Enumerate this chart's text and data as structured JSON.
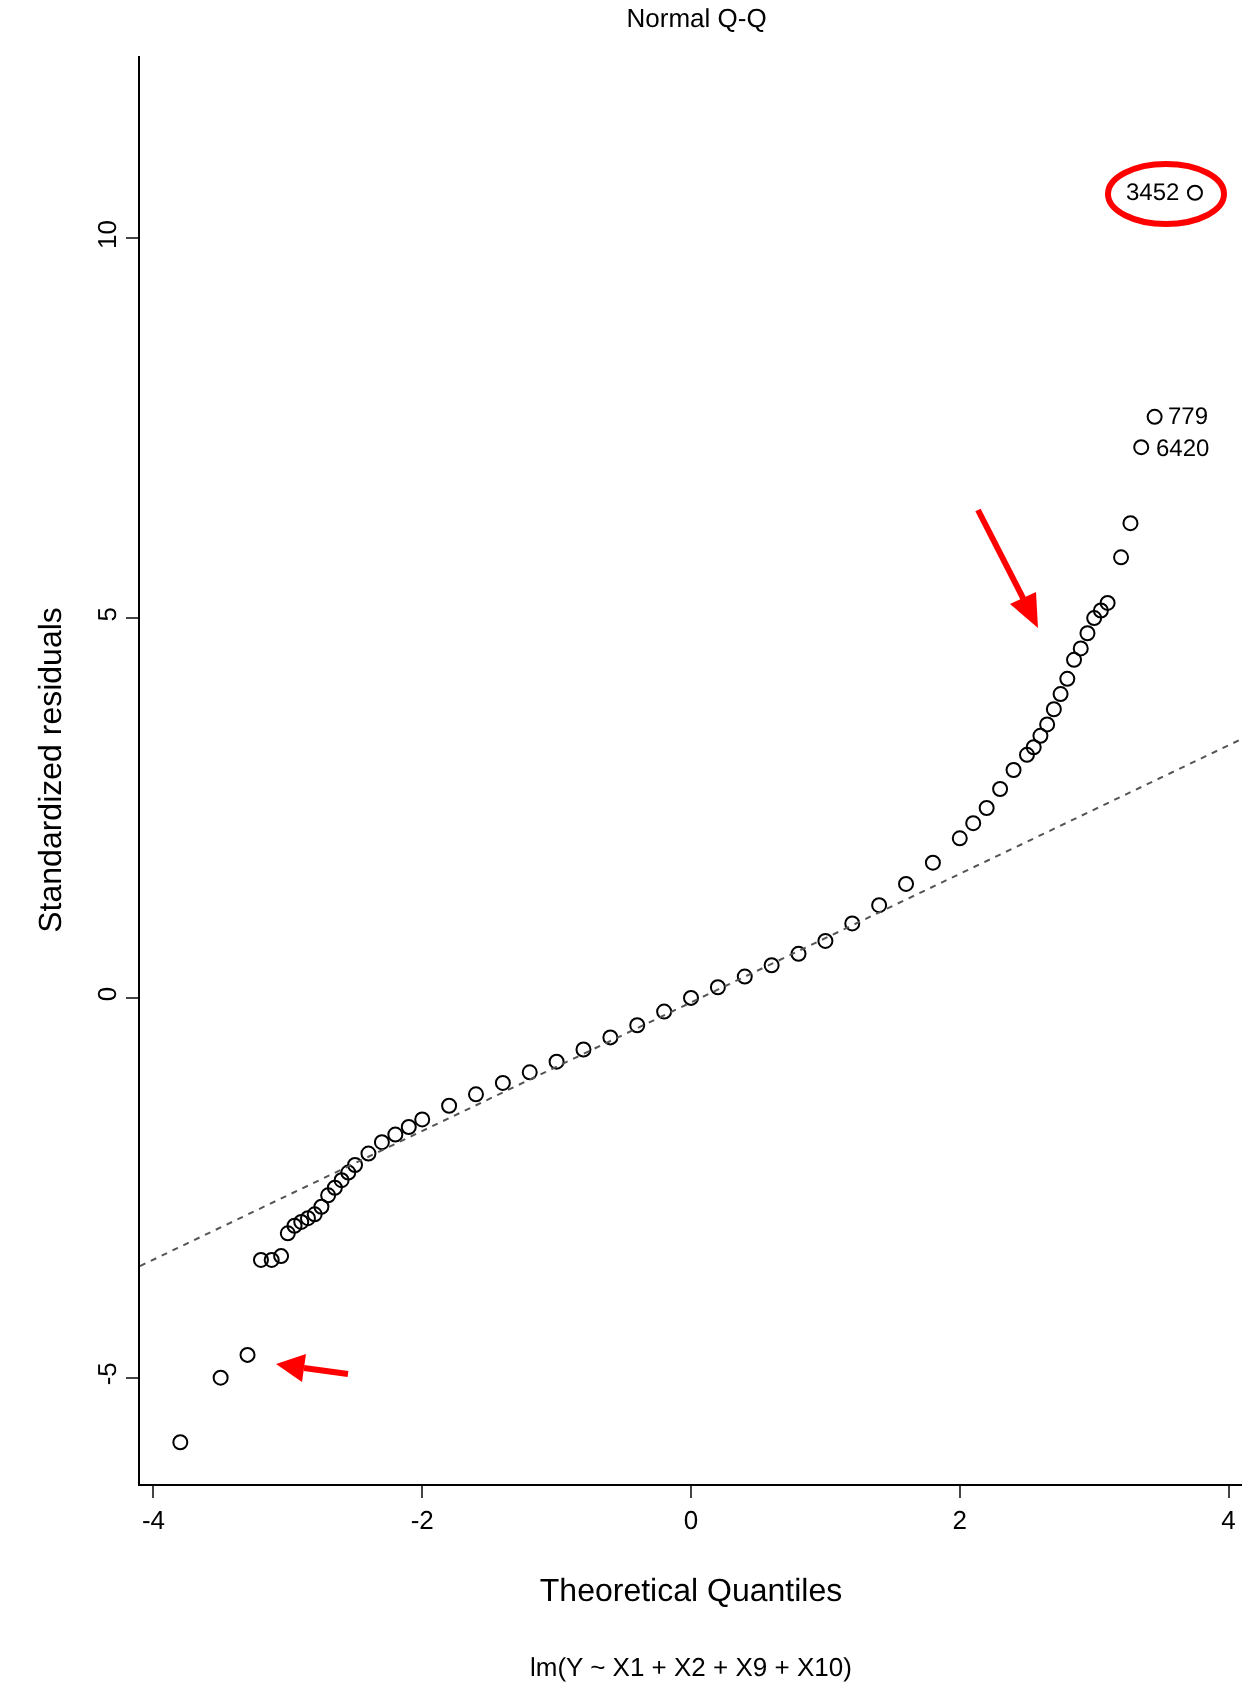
{
  "chart_data": {
    "type": "scatter",
    "title": "Normal Q-Q",
    "subtitle": "lm(Y ~ X1 + X2 + X9 + X10)",
    "xlabel": "Theoretical Quantiles",
    "ylabel": "Standardized residuals",
    "xlim": [
      -4.1,
      4.1
    ],
    "ylim": [
      -6.4,
      12.4
    ],
    "xticks": [
      -4,
      -2,
      0,
      2,
      4
    ],
    "yticks": [
      -5,
      0,
      5,
      10
    ],
    "grid": false,
    "series": [
      {
        "marker": "circle",
        "color": "#000000",
        "x": [
          -3.8,
          -3.5,
          -3.3,
          -3.2,
          -3.12,
          -3.05,
          -3.0,
          -2.95,
          -2.9,
          -2.85,
          -2.8,
          -2.75,
          -2.7,
          -2.65,
          -2.6,
          -2.55,
          -2.5,
          -2.4,
          -2.3,
          -2.2,
          -2.1,
          -2.0,
          -1.8,
          -1.6,
          -1.4,
          -1.2,
          -1.0,
          -0.8,
          -0.6,
          -0.4,
          -0.2,
          0.0,
          0.2,
          0.4,
          0.6,
          0.8,
          1.0,
          1.2,
          1.4,
          1.6,
          1.8,
          2.0,
          2.1,
          2.2,
          2.3,
          2.4,
          2.5,
          2.55,
          2.6,
          2.65,
          2.7,
          2.75,
          2.8,
          2.85,
          2.9,
          2.95,
          3.0,
          3.05,
          3.1,
          3.2,
          3.27,
          3.35,
          3.45,
          3.75
        ],
        "values": [
          -5.85,
          -5.0,
          -4.7,
          -3.45,
          -3.45,
          -3.4,
          -3.1,
          -3.0,
          -2.95,
          -2.9,
          -2.85,
          -2.75,
          -2.6,
          -2.5,
          -2.4,
          -2.3,
          -2.2,
          -2.05,
          -1.9,
          -1.8,
          -1.7,
          -1.6,
          -1.42,
          -1.27,
          -1.12,
          -0.98,
          -0.84,
          -0.68,
          -0.52,
          -0.36,
          -0.18,
          0.0,
          0.14,
          0.28,
          0.43,
          0.58,
          0.75,
          0.98,
          1.22,
          1.5,
          1.78,
          2.1,
          2.3,
          2.5,
          2.75,
          3.0,
          3.2,
          3.3,
          3.45,
          3.6,
          3.8,
          4.0,
          4.2,
          4.45,
          4.6,
          4.8,
          5.0,
          5.1,
          5.2,
          5.8,
          6.25,
          7.25,
          7.65,
          10.6
        ]
      },
      {
        "type": "line",
        "marker": "none",
        "color": "#555555",
        "line_style": "dotted",
        "x": [
          -4.1,
          4.1
        ],
        "values": [
          -3.53,
          3.41
        ]
      }
    ],
    "annotations": [
      {
        "text": "3452",
        "x": 3.75,
        "y": 10.6
      },
      {
        "text": "779",
        "x": 3.45,
        "y": 7.65
      },
      {
        "text": "6420",
        "x": 3.35,
        "y": 7.25
      }
    ]
  }
}
